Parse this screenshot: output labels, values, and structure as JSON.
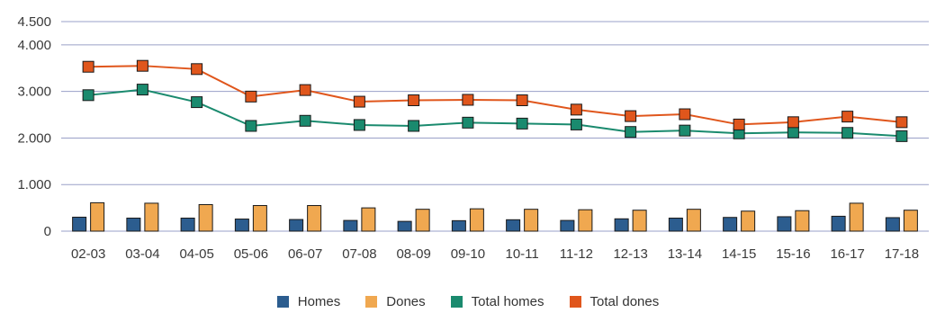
{
  "colors": {
    "homes": "#2c5d8f",
    "dones": "#f0a850",
    "total_homes": "#1a8a6e",
    "total_dones": "#e0561c",
    "grid": "#9aa0c8",
    "axis_text": "#3a3a3a"
  },
  "chart_data": {
    "type": "bar",
    "categories": [
      "02-03",
      "03-04",
      "04-05",
      "05-06",
      "06-07",
      "07-08",
      "08-09",
      "09-10",
      "10-11",
      "11-12",
      "12-13",
      "13-14",
      "14-15",
      "15-16",
      "16-17",
      "17-18"
    ],
    "y_tick_labels": [
      "0",
      "1.000",
      "2.000",
      "3.000",
      "4.000",
      "4.500"
    ],
    "y_tick_values": [
      0,
      1000,
      2000,
      3000,
      4000,
      4500
    ],
    "ylim": [
      0,
      4500
    ],
    "grid": true,
    "legend_position": "bottom-center",
    "series": [
      {
        "name": "Homes",
        "type": "bar",
        "values": [
          300,
          280,
          280,
          260,
          250,
          230,
          210,
          225,
          245,
          230,
          265,
          280,
          295,
          310,
          320,
          290
        ]
      },
      {
        "name": "Dones",
        "type": "bar",
        "values": [
          610,
          600,
          570,
          550,
          550,
          500,
          470,
          480,
          470,
          460,
          450,
          470,
          430,
          440,
          600,
          450
        ]
      },
      {
        "name": "Total homes",
        "type": "line",
        "values": [
          2920,
          3040,
          2770,
          2260,
          2370,
          2280,
          2260,
          2330,
          2310,
          2290,
          2130,
          2160,
          2100,
          2120,
          2110,
          2040
        ]
      },
      {
        "name": "Total dones",
        "type": "line",
        "values": [
          3530,
          3550,
          3480,
          2890,
          3030,
          2780,
          2810,
          2820,
          2810,
          2610,
          2470,
          2510,
          2290,
          2340,
          2460,
          2340
        ]
      }
    ]
  }
}
